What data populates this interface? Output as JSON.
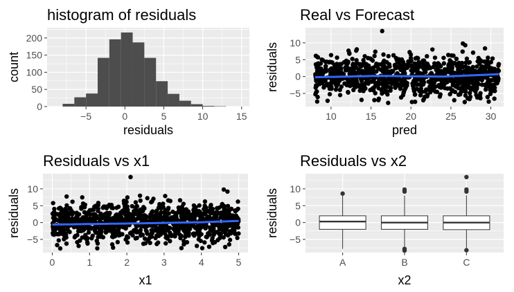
{
  "chart_data": [
    {
      "type": "bar",
      "title": "histogram of residuals",
      "xlabel": "residuals",
      "ylabel": "count",
      "xlim": [
        -10,
        16
      ],
      "ylim": [
        0,
        230
      ],
      "x_ticks": [
        -5,
        0,
        5,
        10,
        15
      ],
      "y_ticks": [
        0,
        50,
        100,
        150,
        200
      ],
      "bins": [
        {
          "x0": -8.0,
          "x1": -6.5,
          "count": 8
        },
        {
          "x0": -6.5,
          "x1": -5.0,
          "count": 27
        },
        {
          "x0": -5.0,
          "x1": -3.5,
          "count": 38
        },
        {
          "x0": -3.5,
          "x1": -2.0,
          "count": 142
        },
        {
          "x0": -2.0,
          "x1": -0.5,
          "count": 196
        },
        {
          "x0": -0.5,
          "x1": 1.0,
          "count": 216
        },
        {
          "x0": 1.0,
          "x1": 2.5,
          "count": 187
        },
        {
          "x0": 2.5,
          "x1": 4.0,
          "count": 142
        },
        {
          "x0": 4.0,
          "x1": 5.5,
          "count": 74
        },
        {
          "x0": 5.5,
          "x1": 7.0,
          "count": 37
        },
        {
          "x0": 7.0,
          "x1": 8.5,
          "count": 17
        },
        {
          "x0": 8.5,
          "x1": 10.0,
          "count": 7
        },
        {
          "x0": 10.0,
          "x1": 11.5,
          "count": 2
        },
        {
          "x0": 11.5,
          "x1": 13.0,
          "count": 1
        },
        {
          "x0": 13.0,
          "x1": 14.5,
          "count": 0
        }
      ],
      "bar_color": "#4d4d4d"
    },
    {
      "type": "scatter",
      "title": "Real vs Forecast",
      "xlabel": "pred",
      "ylabel": "residuals",
      "xlim": [
        6.8,
        31.6
      ],
      "ylim": [
        -8.9,
        14.5
      ],
      "x_ticks": [
        10,
        15,
        20,
        25,
        30
      ],
      "y_ticks": [
        -5,
        0,
        5,
        10
      ],
      "x_range": [
        8,
        31
      ],
      "n_points": 1000,
      "trend": [
        [
          8,
          -0.2
        ],
        [
          16,
          0.2
        ],
        [
          24,
          0.0
        ],
        [
          31,
          0.7
        ]
      ],
      "outliers": [
        [
          16.4,
          13.5
        ],
        [
          26.5,
          9.8
        ],
        [
          26.8,
          9.3
        ]
      ],
      "point_color": "#000000",
      "smooth_color": "#3366FF"
    },
    {
      "type": "scatter",
      "title": "Residuals vs  x1",
      "xlabel": "x1",
      "ylabel": "residuals",
      "xlim": [
        -0.25,
        5.25
      ],
      "ylim": [
        -8.9,
        14.5
      ],
      "x_ticks": [
        0,
        1,
        2,
        3,
        4,
        5
      ],
      "y_ticks": [
        -5,
        0,
        5,
        10
      ],
      "x_range": [
        0,
        5
      ],
      "n_points": 1000,
      "trend": [
        [
          0,
          -0.6
        ],
        [
          2.5,
          -0.2
        ],
        [
          4,
          0.1
        ],
        [
          5,
          0.5
        ]
      ],
      "outliers": [
        [
          2.1,
          13.5
        ],
        [
          4.6,
          9.8
        ],
        [
          4.7,
          9.2
        ]
      ],
      "point_color": "#000000",
      "smooth_color": "#3366FF"
    },
    {
      "type": "box",
      "title": "Residuals vs  x2",
      "xlabel": "x2",
      "ylabel": "residuals",
      "ylim": [
        -8.9,
        14.5
      ],
      "y_ticks": [
        -5,
        0,
        5,
        10
      ],
      "categories": [
        "A",
        "B",
        "C"
      ],
      "boxes": [
        {
          "q1": -2.0,
          "median": 0.3,
          "q3": 2.0,
          "whisker_low": -7.8,
          "whisker_high": 8.2,
          "outliers": [
            8.6
          ]
        },
        {
          "q1": -2.0,
          "median": 0.0,
          "q3": 2.0,
          "whisker_low": -7.5,
          "whisker_high": 8.0,
          "outliers": [
            9.8,
            9.2,
            -7.8,
            -8.3
          ]
        },
        {
          "q1": -2.1,
          "median": 0.0,
          "q3": 2.0,
          "whisker_low": -7.6,
          "whisker_high": 8.1,
          "outliers": [
            13.5,
            9.8,
            9.2,
            -8.2
          ]
        }
      ]
    }
  ]
}
